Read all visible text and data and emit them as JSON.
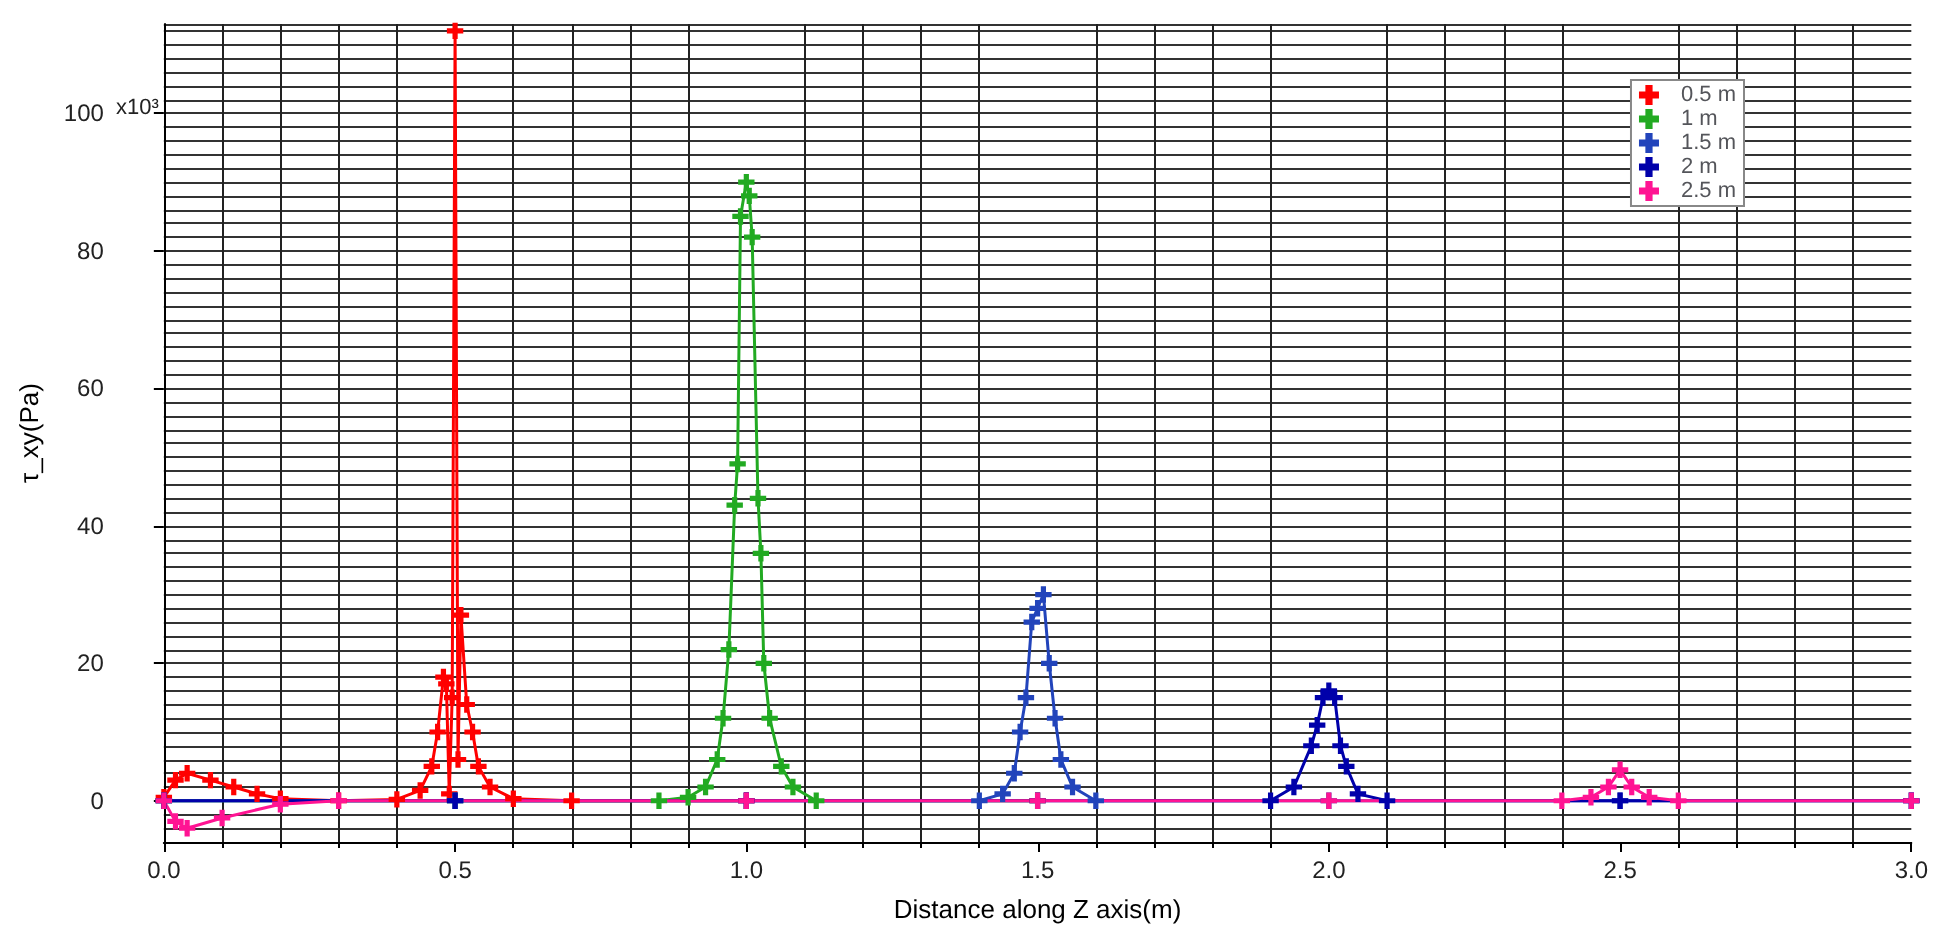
{
  "chart_data": {
    "type": "line",
    "xlabel": "Distance along Z axis(m)",
    "ylabel": "τ_xy(Pa)",
    "annotations": [
      "x10³"
    ],
    "xlim": [
      0,
      3
    ],
    "xticks": [
      {
        "value": 0,
        "label": "0.0"
      },
      0.5,
      {
        "value": 1,
        "label": "1.0"
      },
      1.5,
      {
        "value": 2,
        "label": "2.0"
      },
      2.5,
      {
        "value": 3,
        "label": "3.0"
      }
    ],
    "ylim": [
      -6,
      113
    ],
    "yticks": [
      0,
      20,
      40,
      60,
      80,
      100
    ],
    "grid": true,
    "legend": "top right",
    "marker": "cross",
    "line_style": "solid",
    "series": [
      {
        "name": "0.5 m",
        "color": "#ff0000",
        "x": [
          0,
          0.02,
          0.04,
          0.08,
          0.12,
          0.16,
          0.2,
          0.3,
          0.4,
          0.44,
          0.46,
          0.47,
          0.48,
          0.485,
          0.49,
          0.495,
          0.5,
          0.505,
          0.51,
          0.52,
          0.53,
          0.54,
          0.56,
          0.6,
          0.7,
          1
        ],
        "values": [
          0.5,
          3,
          4,
          3,
          2,
          1,
          0.3,
          0,
          0.2,
          1.5,
          5,
          10,
          18,
          17,
          1,
          15,
          112,
          6,
          27,
          14,
          10,
          5,
          2,
          0.3,
          0,
          0
        ]
      },
      {
        "name": "1 m",
        "color": "#22aa22",
        "x": [
          0,
          0.5,
          0.85,
          0.9,
          0.93,
          0.95,
          0.96,
          0.97,
          0.98,
          0.985,
          0.99,
          1,
          1.005,
          1.01,
          1.02,
          1.025,
          1.03,
          1.04,
          1.06,
          1.08,
          1.12,
          1.5
        ],
        "values": [
          0,
          0,
          0,
          0.5,
          2,
          6,
          12,
          22,
          43,
          49,
          85,
          90,
          88,
          82,
          44,
          36,
          20,
          12,
          5,
          2,
          0,
          0
        ]
      },
      {
        "name": "1.5 m",
        "color": "#2244bb",
        "x": [
          0,
          0.5,
          1,
          1.4,
          1.44,
          1.46,
          1.47,
          1.48,
          1.49,
          1.5,
          1.51,
          1.52,
          1.53,
          1.54,
          1.56,
          1.6,
          2,
          2.5,
          3
        ],
        "values": [
          0,
          0,
          0,
          0,
          1,
          4,
          10,
          15,
          26,
          28,
          30,
          20,
          12,
          6,
          2,
          0,
          0,
          0,
          0
        ]
      },
      {
        "name": "2 m",
        "color": "#0000aa",
        "x": [
          0,
          0.5,
          1,
          1.5,
          1.9,
          1.94,
          1.97,
          1.98,
          1.99,
          2,
          2.01,
          2.02,
          2.03,
          2.05,
          2.1,
          2.5,
          3
        ],
        "values": [
          0,
          0,
          0,
          0,
          0,
          2,
          8,
          11,
          15,
          16,
          15,
          8,
          5,
          1,
          0,
          0,
          0
        ]
      },
      {
        "name": "2.5 m",
        "color": "#ff1493",
        "x": [
          0,
          0.02,
          0.04,
          0.1,
          0.2,
          0.3,
          1,
          1.5,
          2,
          2.4,
          2.45,
          2.48,
          2.5,
          2.52,
          2.55,
          2.6,
          3
        ],
        "values": [
          0,
          -3,
          -4,
          -2.5,
          -0.5,
          0,
          0,
          0,
          0,
          0,
          0.5,
          2,
          4.5,
          2,
          0.5,
          0,
          0
        ]
      }
    ]
  }
}
